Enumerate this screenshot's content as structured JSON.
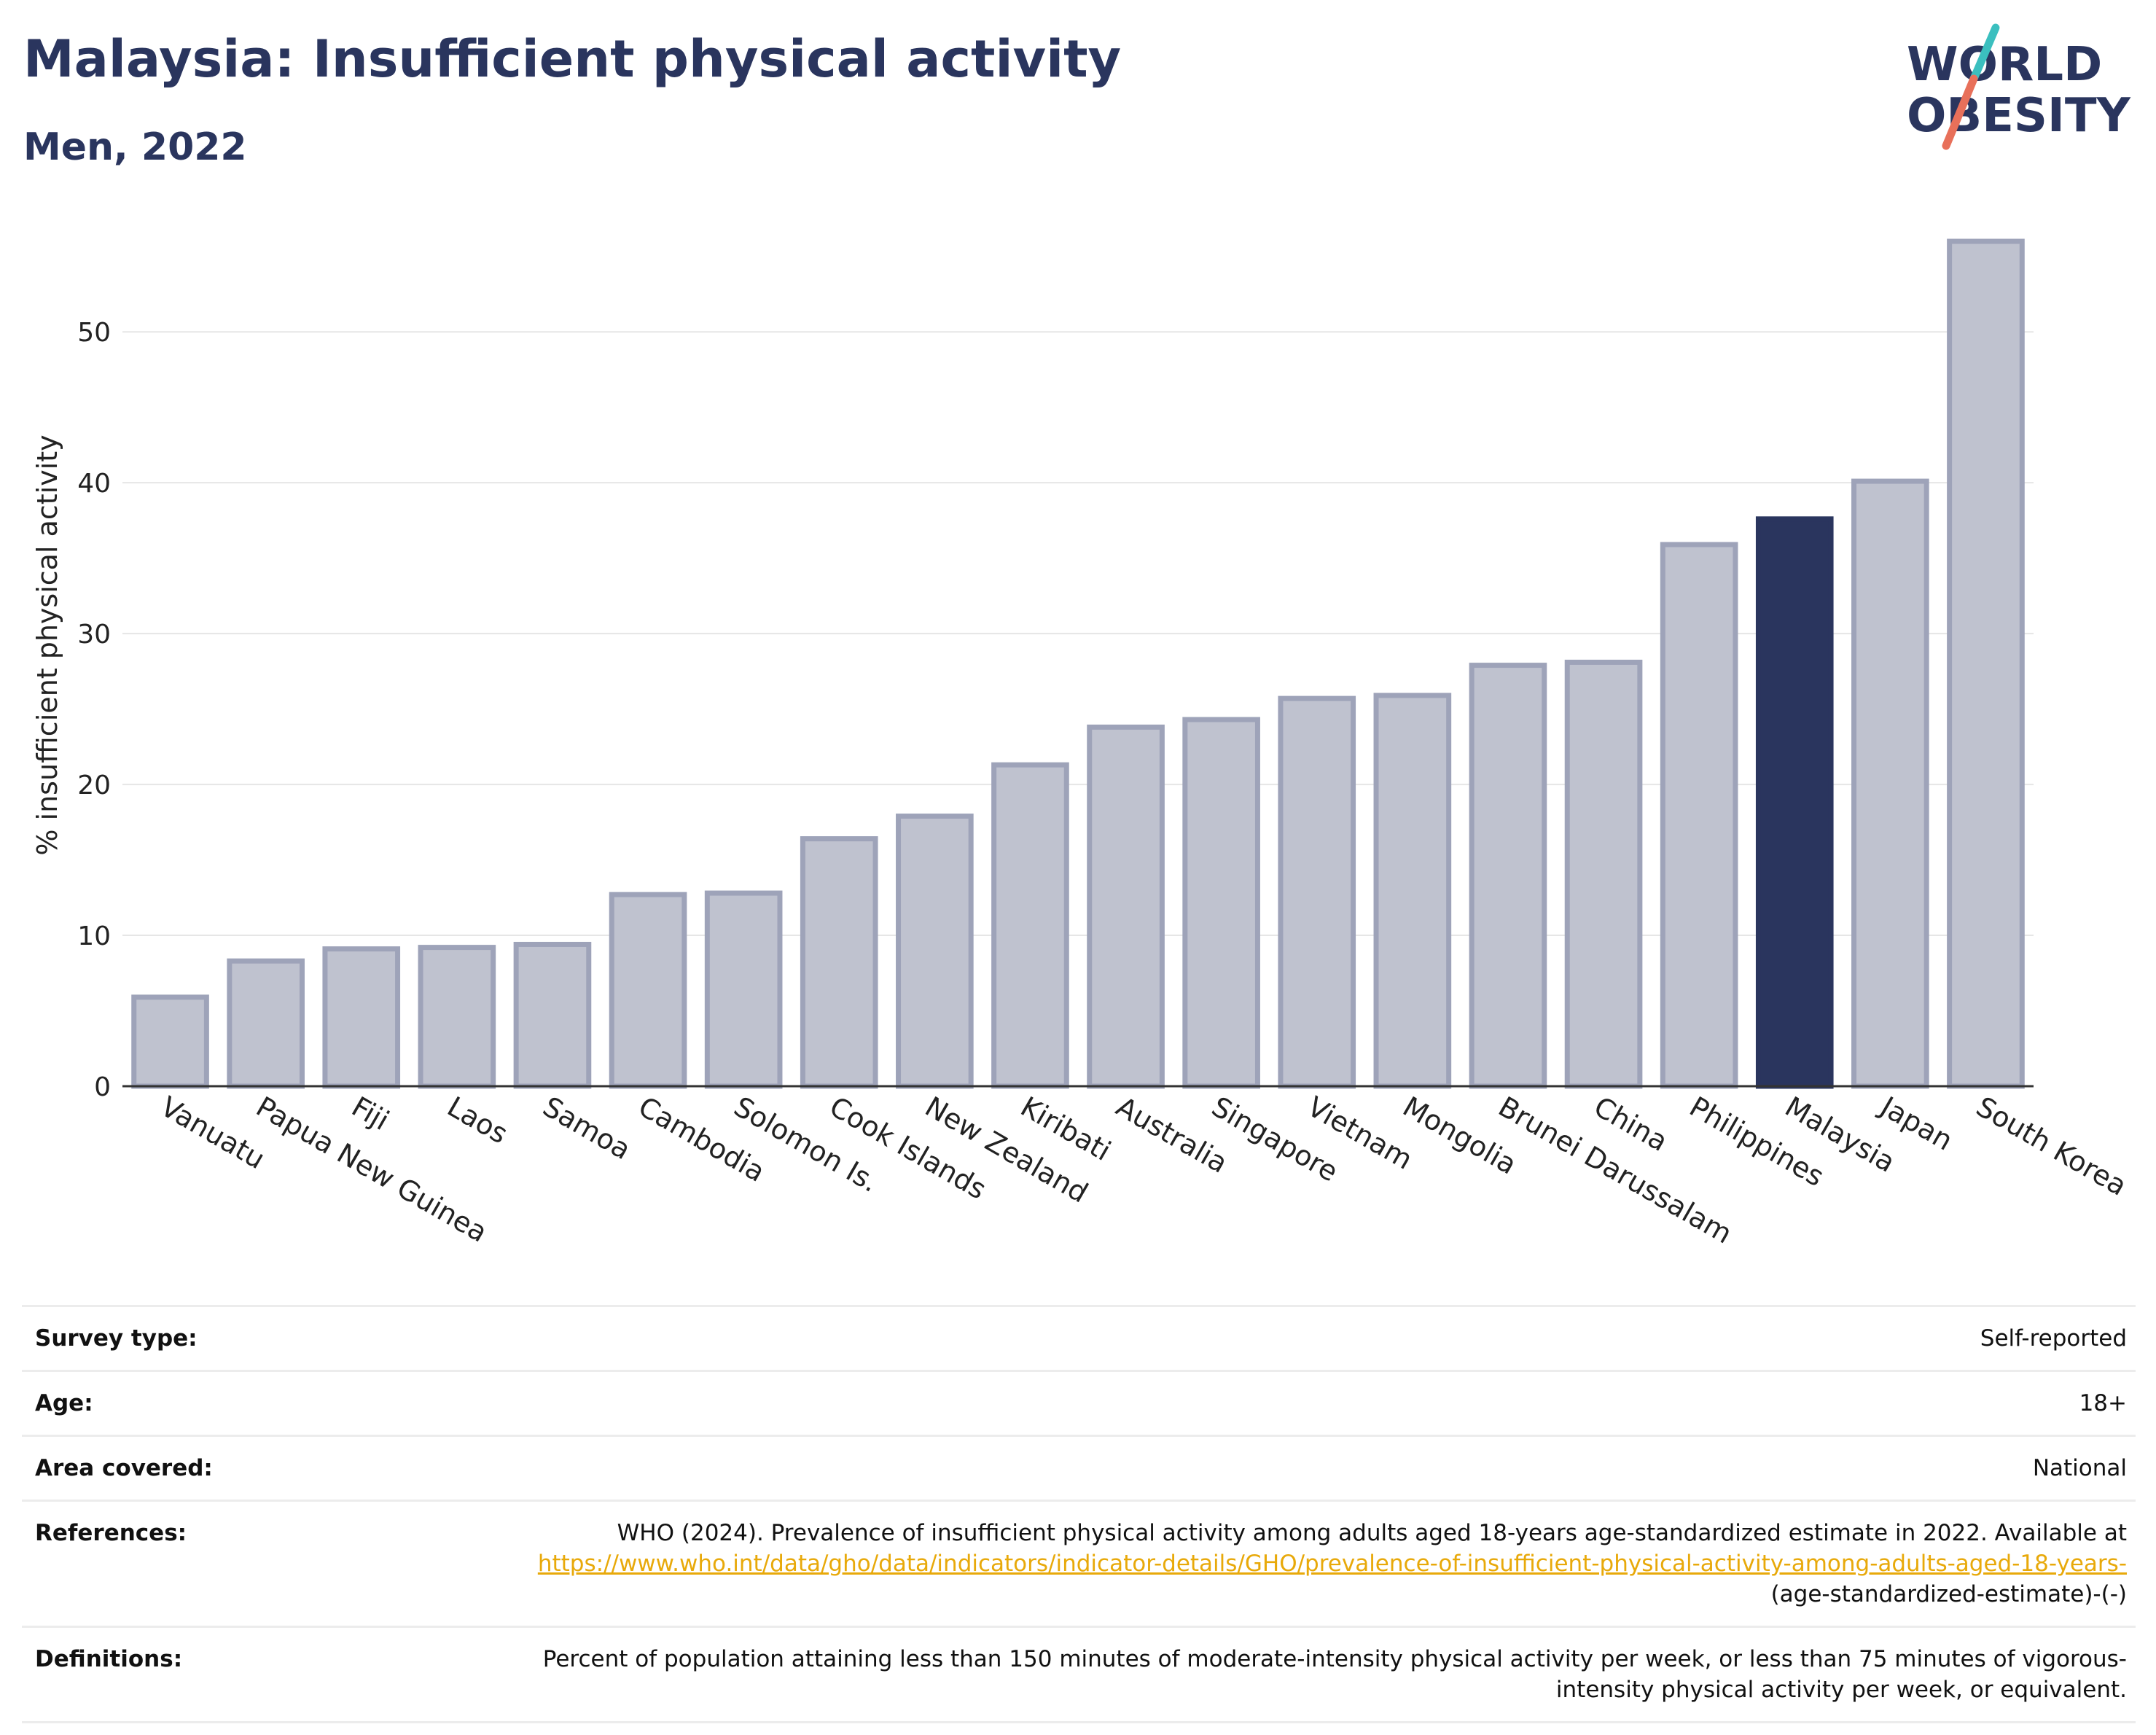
{
  "header": {
    "title": "Malaysia: Insufficient physical activity",
    "subtitle": "Men, 2022",
    "logo_line1": "WORLD",
    "logo_line2": "OBESITY"
  },
  "colors": {
    "accent_bar": "#2a355e",
    "bar_fill": "#bfc2cf",
    "bar_stroke": "#9ea3b9",
    "logo_teal": "#3bbfbf",
    "logo_coral": "#e8705a",
    "link": "#e8a90a"
  },
  "chart_data": {
    "type": "bar",
    "title": "Malaysia: Insufficient physical activity",
    "subtitle": "Men, 2022",
    "xlabel": "",
    "ylabel": "% insufficient physical activity",
    "ylim": [
      0,
      57.5
    ],
    "yticks": [
      0,
      10,
      20,
      30,
      40,
      50
    ],
    "grid": true,
    "highlight": "Malaysia",
    "categories": [
      "Vanuatu",
      "Papua New Guinea",
      "Fiji",
      "Laos",
      "Samoa",
      "Cambodia",
      "Solomon Is.",
      "Cook Islands",
      "New Zealand",
      "Kiribati",
      "Australia",
      "Singapore",
      "Vietnam",
      "Mongolia",
      "Brunei Darussalam",
      "China",
      "Philippines",
      "Malaysia",
      "Japan",
      "South Korea"
    ],
    "values": [
      5.9,
      8.3,
      9.1,
      9.2,
      9.4,
      12.7,
      12.8,
      16.4,
      17.9,
      21.3,
      23.8,
      24.3,
      25.7,
      25.9,
      27.9,
      28.1,
      35.9,
      37.6,
      40.1,
      56.0
    ]
  },
  "info": {
    "rows": [
      {
        "label": "Survey type:",
        "value": "Self-reported"
      },
      {
        "label": "Age:",
        "value": "18+"
      },
      {
        "label": "Area covered:",
        "value": "National"
      }
    ],
    "references": {
      "label": "References:",
      "text": "WHO (2024). Prevalence of insufficient physical activity among adults aged 18-years age-standardized estimate in 2022. Available at",
      "link": "https://www.who.int/data/gho/data/indicators/indicator-details/GHO/prevalence-of-insufficient-physical-activity-among-adults-aged-18-years-",
      "suffix": "(age-standardized-estimate)-(-)"
    },
    "definitions": {
      "label": "Definitions:",
      "text": "Percent of population attaining less than 150 minutes of moderate-intensity physical activity per week, or less than 75 minutes of vigorous-intensity physical activity per week, or equivalent."
    }
  }
}
